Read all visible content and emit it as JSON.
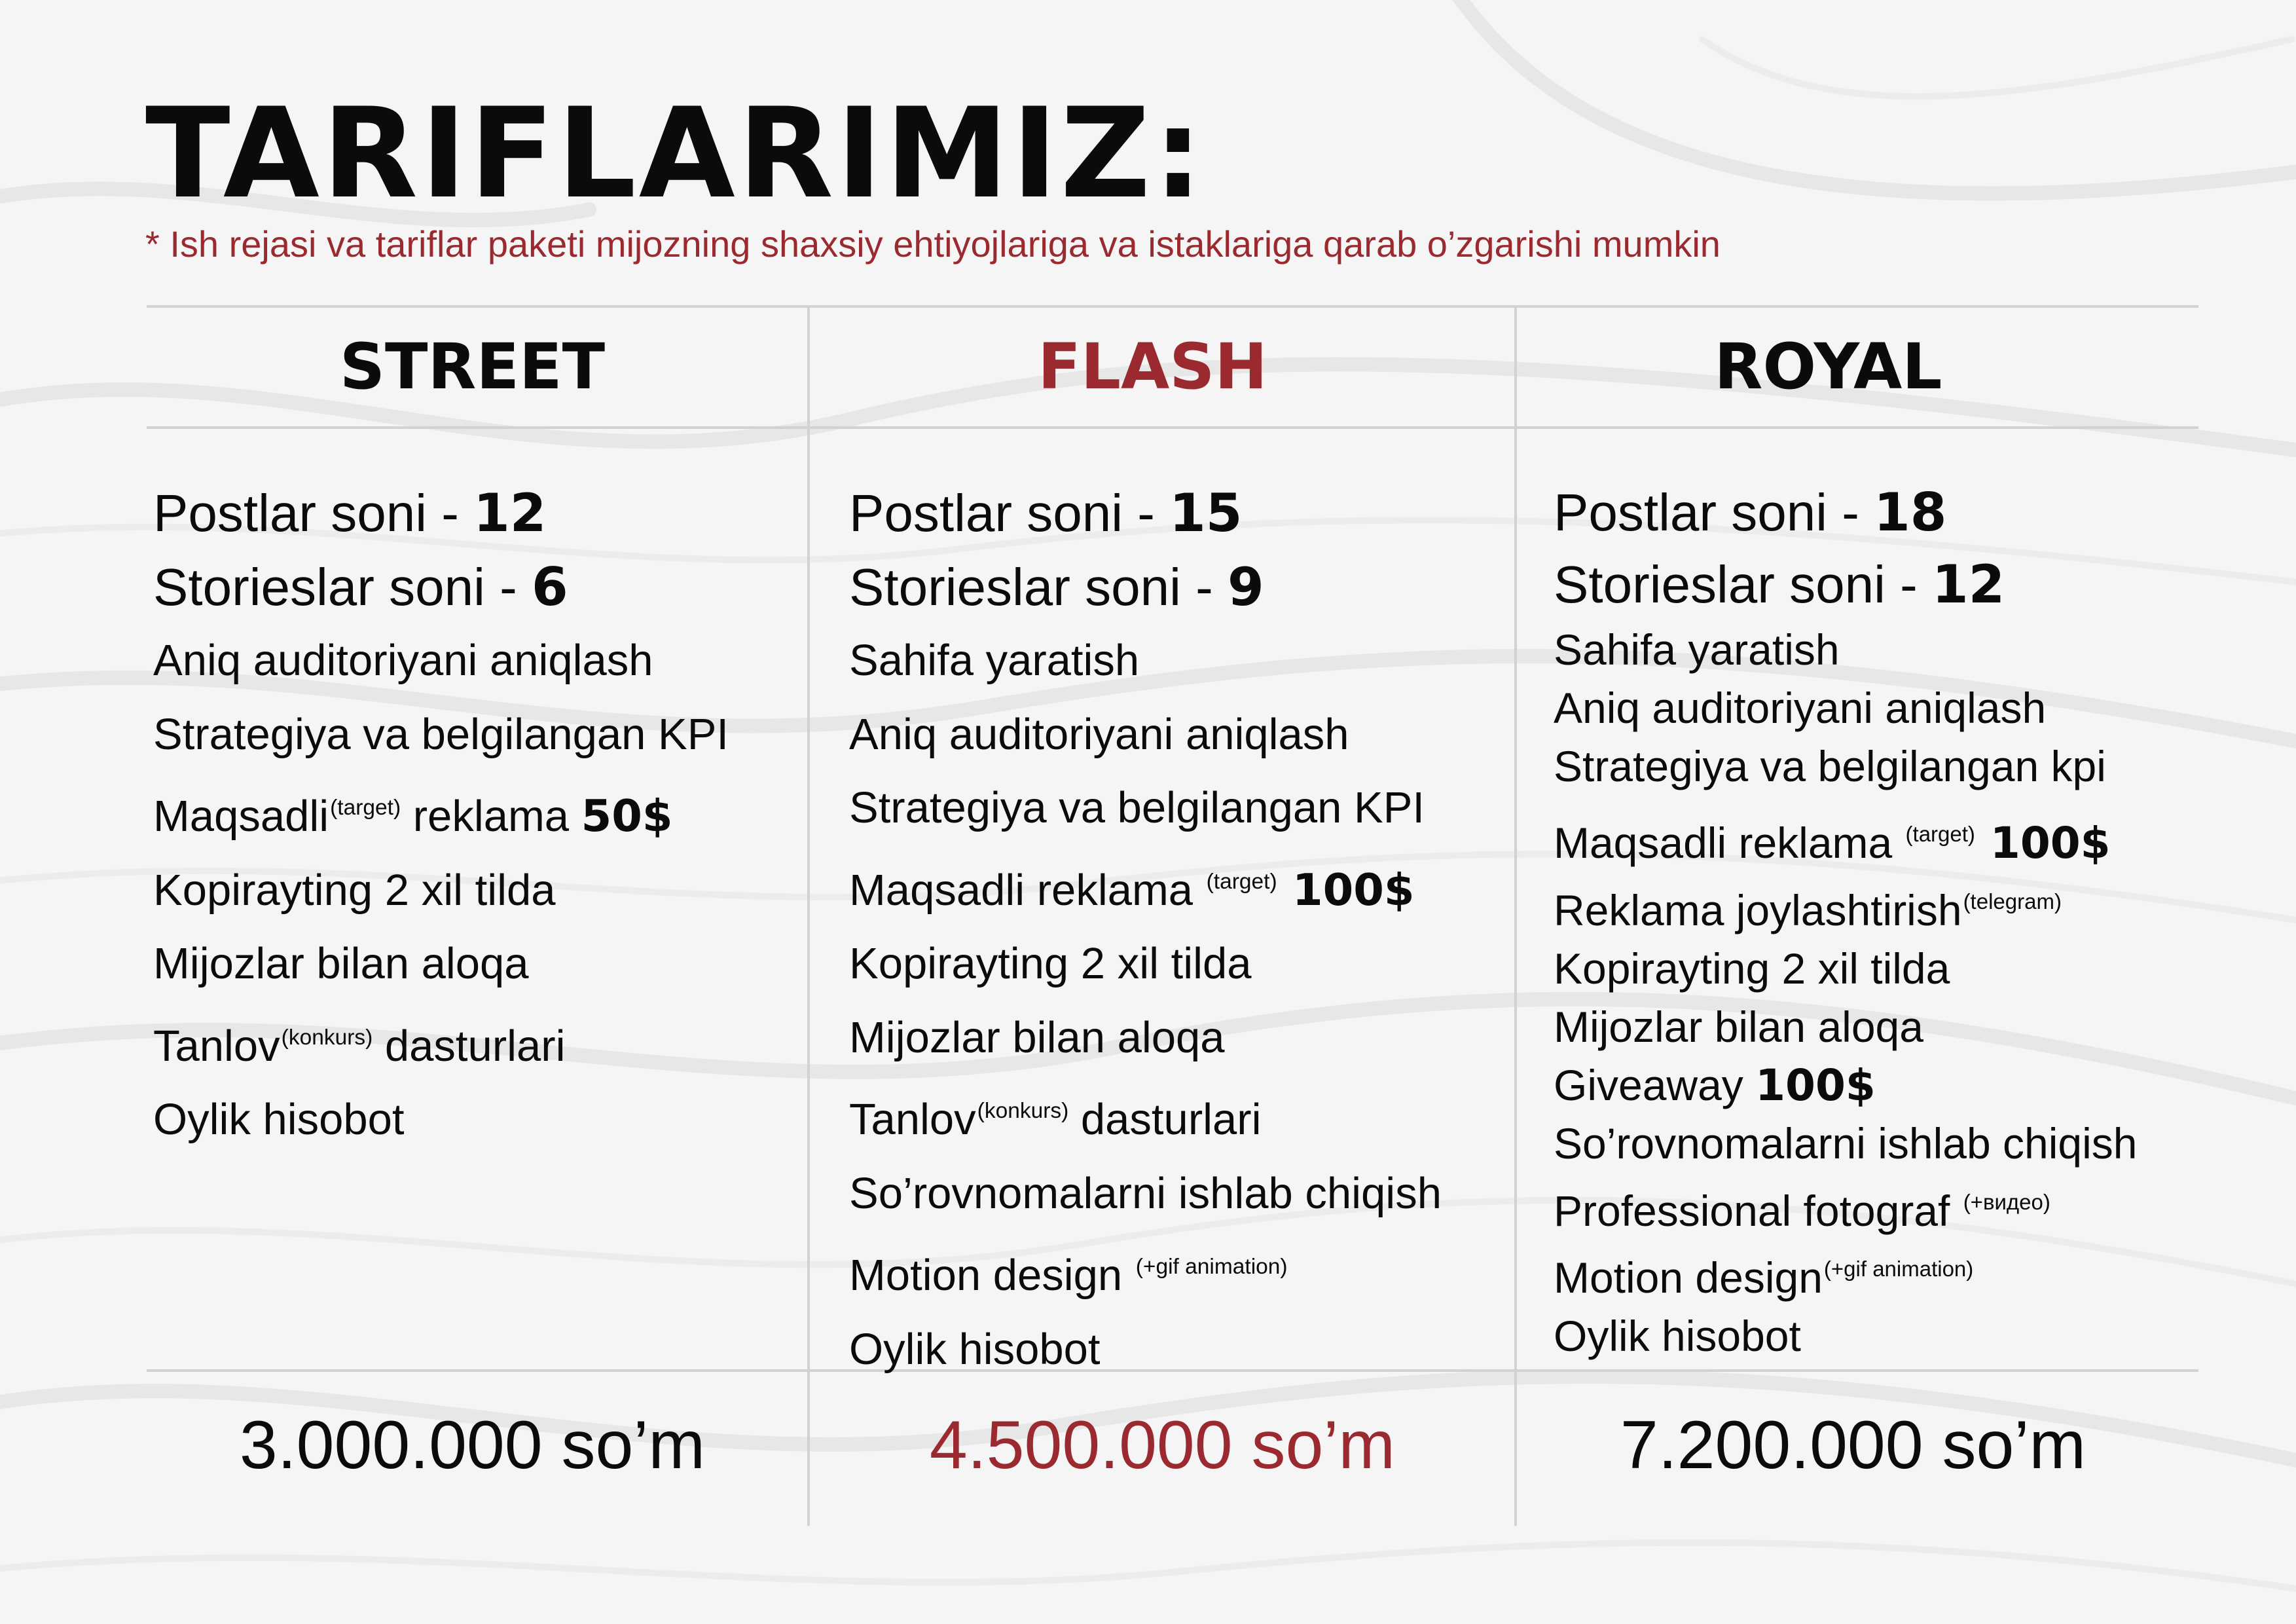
{
  "header": {
    "title": "TARIFLARIMIZ:",
    "subtitle": "* Ish rejasi va tariflar paketi mijozning shaxsiy ehtiyojlariga va istaklariga qarab o’zgarishi mumkin"
  },
  "colors": {
    "accent": "#9b2a30",
    "text": "#0b0b0b",
    "divider": "#d2d2d2",
    "background": "#f5f5f5"
  },
  "plans": [
    {
      "name": "STREET",
      "posts_label": "Postlar soni - ",
      "posts_value": "12",
      "stories_label": "Storieslar soni - ",
      "stories_value": "6",
      "features": {
        "audience": "Aniq auditoriyani aniqlash",
        "strategy": "Strategiya va belgilangan KPI",
        "ads_label": "Maqsadli",
        "ads_note": "(target)",
        "ads_rest": " reklama ",
        "ads_value": "50$",
        "copywriting": "Kopirayting 2 xil tilda",
        "clients": "Mijozlar bilan aloqa",
        "contest_label": "Tanlov",
        "contest_note": "(konkurs)",
        "contest_rest": " dasturlari",
        "report": "Oylik hisobot"
      },
      "price": "3.000.000 so’m"
    },
    {
      "name": "FLASH",
      "posts_label": "Postlar soni - ",
      "posts_value": "15",
      "stories_label": "Storieslar soni - ",
      "stories_value": "9",
      "features": {
        "page": "Sahifa yaratish",
        "audience": "Aniq auditoriyani aniqlash",
        "strategy": "Strategiya va belgilangan KPI",
        "ads_label": "Maqsadli reklama ",
        "ads_note": "(target)",
        "ads_value": " 100$",
        "copywriting": "Kopirayting 2 xil tilda",
        "clients": "Mijozlar bilan aloqa",
        "contest_label": "Tanlov",
        "contest_note": "(konkurs)",
        "contest_rest": " dasturlari",
        "surveys": "So’rovnomalarni ishlab chiqish",
        "motion_label": "Motion design ",
        "motion_note": "(+gif animation)",
        "report": "Oylik hisobot"
      },
      "price": "4.500.000 so’m"
    },
    {
      "name": "ROYAL",
      "posts_label": "Postlar soni - ",
      "posts_value": "18",
      "stories_label": "Storieslar soni - ",
      "stories_value": "12",
      "features": {
        "page": "Sahifa yaratish",
        "audience": "Aniq auditoriyani aniqlash",
        "strategy": "Strategiya va belgilangan kpi",
        "ads_label": "Maqsadli reklama ",
        "ads_note": "(target)",
        "ads_value": " 100$",
        "placement_label": "Reklama joylashtirish",
        "placement_note": "(telegram)",
        "copywriting": "Kopirayting 2 xil tilda",
        "clients": "Mijozlar bilan aloqa",
        "giveaway_label": "Giveaway ",
        "giveaway_value": "100$",
        "surveys": "So’rovnomalarni ishlab chiqish",
        "photo_label": "Professional fotograf ",
        "photo_note": "(+видео)",
        "motion_label": "Motion design",
        "motion_note": "(+gif animation)",
        "report": "Oylik hisobot"
      },
      "price": "7.200.000 so’m"
    }
  ]
}
